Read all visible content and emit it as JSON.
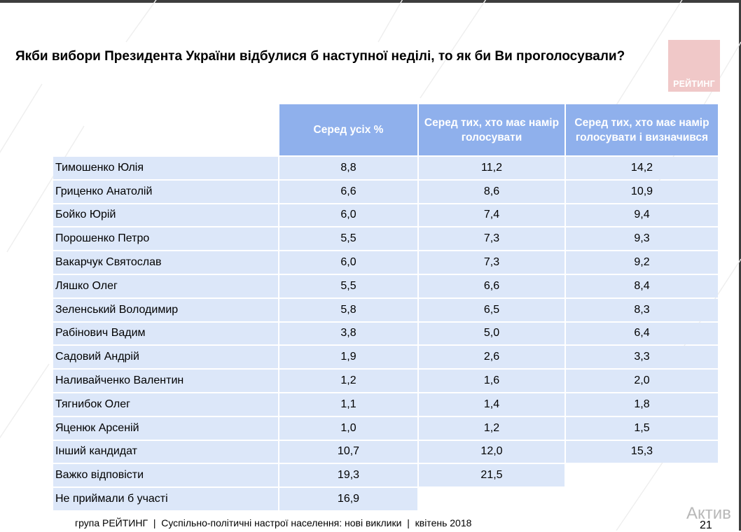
{
  "title": "Якби вибори Президента України відбулися б наступної неділі, то як би Ви проголосували?",
  "logo_text": "РЕЙТИНГ",
  "chart_data": {
    "type": "table",
    "columns": [
      "Серед усіх %",
      "Серед тих, хто має намір голосувати",
      "Серед тих, хто має намір голосувати і визначився"
    ],
    "rows": [
      {
        "label": "Тимошенко Юлія",
        "values": [
          "8,8",
          "11,2",
          "14,2"
        ]
      },
      {
        "label": "Гриценко Анатолій",
        "values": [
          "6,6",
          "8,6",
          "10,9"
        ]
      },
      {
        "label": "Бойко Юрій",
        "values": [
          "6,0",
          "7,4",
          "9,4"
        ]
      },
      {
        "label": "Порошенко Петро",
        "values": [
          "5,5",
          "7,3",
          "9,3"
        ]
      },
      {
        "label": "Вакарчук Святослав",
        "values": [
          "6,0",
          "7,3",
          "9,2"
        ]
      },
      {
        "label": "Ляшко Олег",
        "values": [
          "5,5",
          "6,6",
          "8,4"
        ]
      },
      {
        "label": "Зеленський Володимир",
        "values": [
          "5,8",
          "6,5",
          "8,3"
        ]
      },
      {
        "label": "Рабінович Вадим",
        "values": [
          "3,8",
          "5,0",
          "6,4"
        ]
      },
      {
        "label": "Садовий Андрій",
        "values": [
          "1,9",
          "2,6",
          "3,3"
        ]
      },
      {
        "label": "Наливайченко Валентин",
        "values": [
          "1,2",
          "1,6",
          "2,0"
        ]
      },
      {
        "label": "Тягнибок Олег",
        "values": [
          "1,1",
          "1,4",
          "1,8"
        ]
      },
      {
        "label": "Яценюк Арсеній",
        "values": [
          "1,0",
          "1,2",
          "1,5"
        ]
      },
      {
        "label": "Інший кандидат",
        "values": [
          "10,7",
          "12,0",
          "15,3"
        ]
      },
      {
        "label": "Важко відповісти",
        "values": [
          "19,3",
          "21,5"
        ]
      },
      {
        "label": "Не приймали б участі",
        "values": [
          "16,9"
        ]
      }
    ]
  },
  "colors": {
    "header_bg": "#8fb0ec",
    "cell_bg": "#dce7f9",
    "logo_bg": "#f0c8c8"
  },
  "footer": "група РЕЙТИНГ  |  Суспільно-політичні настрої населення: нові виклики  |  квітень 2018",
  "page_number": "21",
  "watermark": "Актив"
}
